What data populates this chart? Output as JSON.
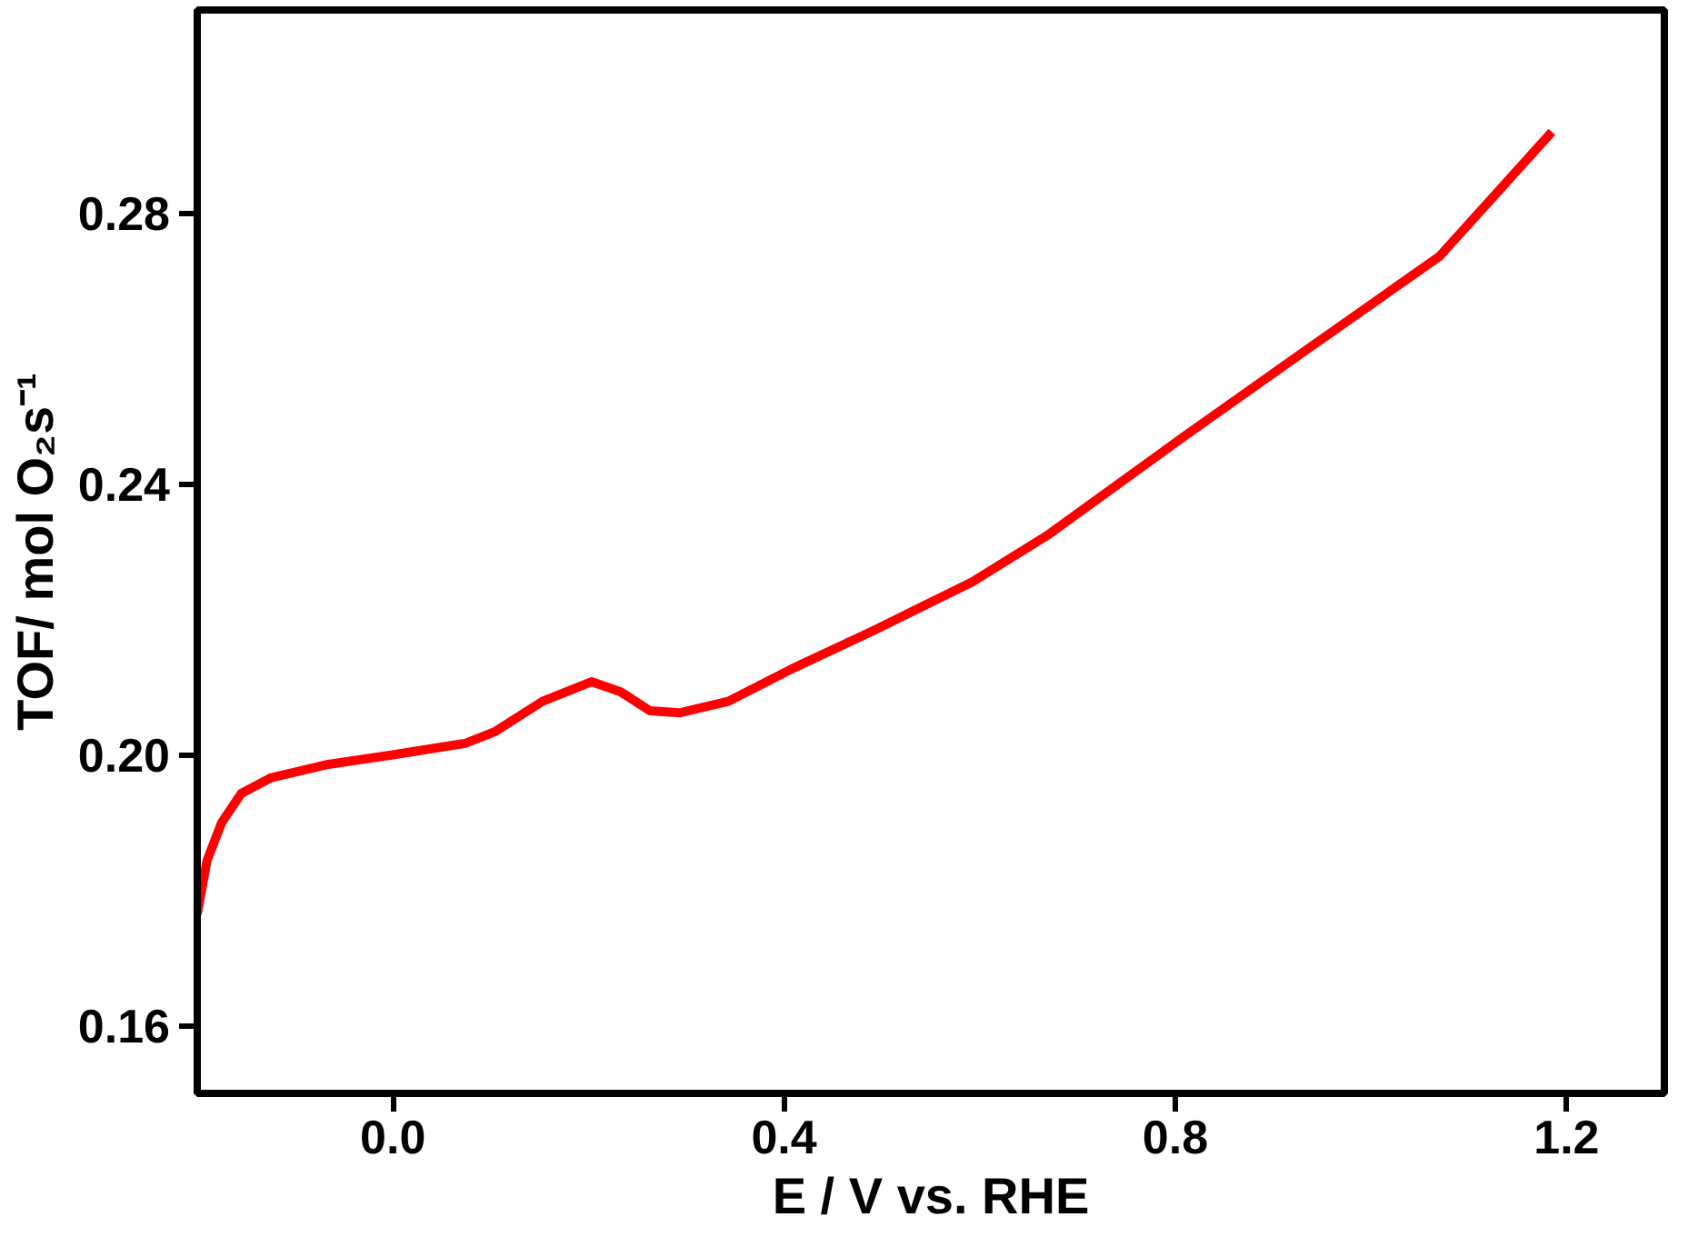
{
  "chart_data": {
    "type": "line",
    "xlabel": "E / V vs. RHE",
    "ylabel": "TOF/ mol O₂s⁻¹",
    "x": [
      -0.2,
      -0.19,
      -0.175,
      -0.155,
      -0.125,
      -0.066,
      0.0,
      0.074,
      0.104,
      0.153,
      0.203,
      0.233,
      0.263,
      0.293,
      0.343,
      0.408,
      0.492,
      0.592,
      0.671,
      0.803,
      0.93,
      1.07,
      1.185
    ],
    "series": [
      {
        "color": "#ff0000",
        "values": [
          0.1765,
          0.1844,
          0.19,
          0.1943,
          0.1966,
          0.1986,
          0.2,
          0.2017,
          0.2034,
          0.2079,
          0.2108,
          0.2093,
          0.2065,
          0.2062,
          0.2079,
          0.2127,
          0.2184,
          0.2255,
          0.2326,
          0.2464,
          0.2594,
          0.2736,
          0.292
        ]
      }
    ],
    "xlim": [
      -0.2,
      1.3
    ],
    "ylim": [
      0.15,
      0.31
    ],
    "xticks": [
      {
        "value": 0,
        "label": "0.0"
      },
      0.4,
      0.8,
      1.2
    ],
    "yticks": [
      0.16,
      {
        "value": 0.2,
        "label": "0.20"
      },
      0.24,
      0.28
    ],
    "grid": false,
    "marker": "none",
    "line_style": "solid"
  }
}
